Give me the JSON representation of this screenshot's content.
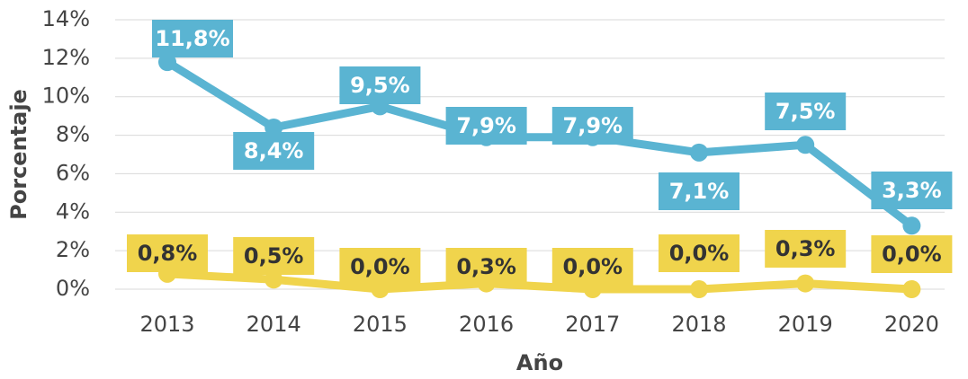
{
  "chart_data": {
    "type": "line",
    "x_label": "Año",
    "y_label": "Porcentaje",
    "categories": [
      "2013",
      "2014",
      "2015",
      "2016",
      "2017",
      "2018",
      "2019",
      "2020"
    ],
    "series": [
      {
        "color": "#5ab4d2",
        "label_text_color": "#ffffff",
        "values": [
          11.8,
          8.4,
          9.5,
          7.9,
          7.9,
          7.1,
          7.5,
          3.3
        ],
        "value_labels": [
          "11,8%",
          "8,4%",
          "9,5%",
          "7,9%",
          "7,9%",
          "7,1%",
          "7,5%",
          "3,3%"
        ]
      },
      {
        "color": "#f0d44c",
        "label_text_color": "#333333",
        "values": [
          0.8,
          0.5,
          0.0,
          0.3,
          0.0,
          0.0,
          0.3,
          0.0
        ],
        "value_labels": [
          "0,8%",
          "0,5%",
          "0,0%",
          "0,3%",
          "0,0%",
          "0,0%",
          "0,3%",
          "0,0%"
        ]
      }
    ],
    "ylim": [
      0,
      14
    ],
    "yticks": [
      {
        "value": 0,
        "label": "0%"
      },
      {
        "value": 2,
        "label": "2%"
      },
      {
        "value": 4,
        "label": "4%"
      },
      {
        "value": 6,
        "label": "6%"
      },
      {
        "value": 8,
        "label": "8%"
      },
      {
        "value": 10,
        "label": "10%"
      },
      {
        "value": 12,
        "label": "12%"
      },
      {
        "value": 14,
        "label": "14%"
      }
    ],
    "grid": true
  }
}
